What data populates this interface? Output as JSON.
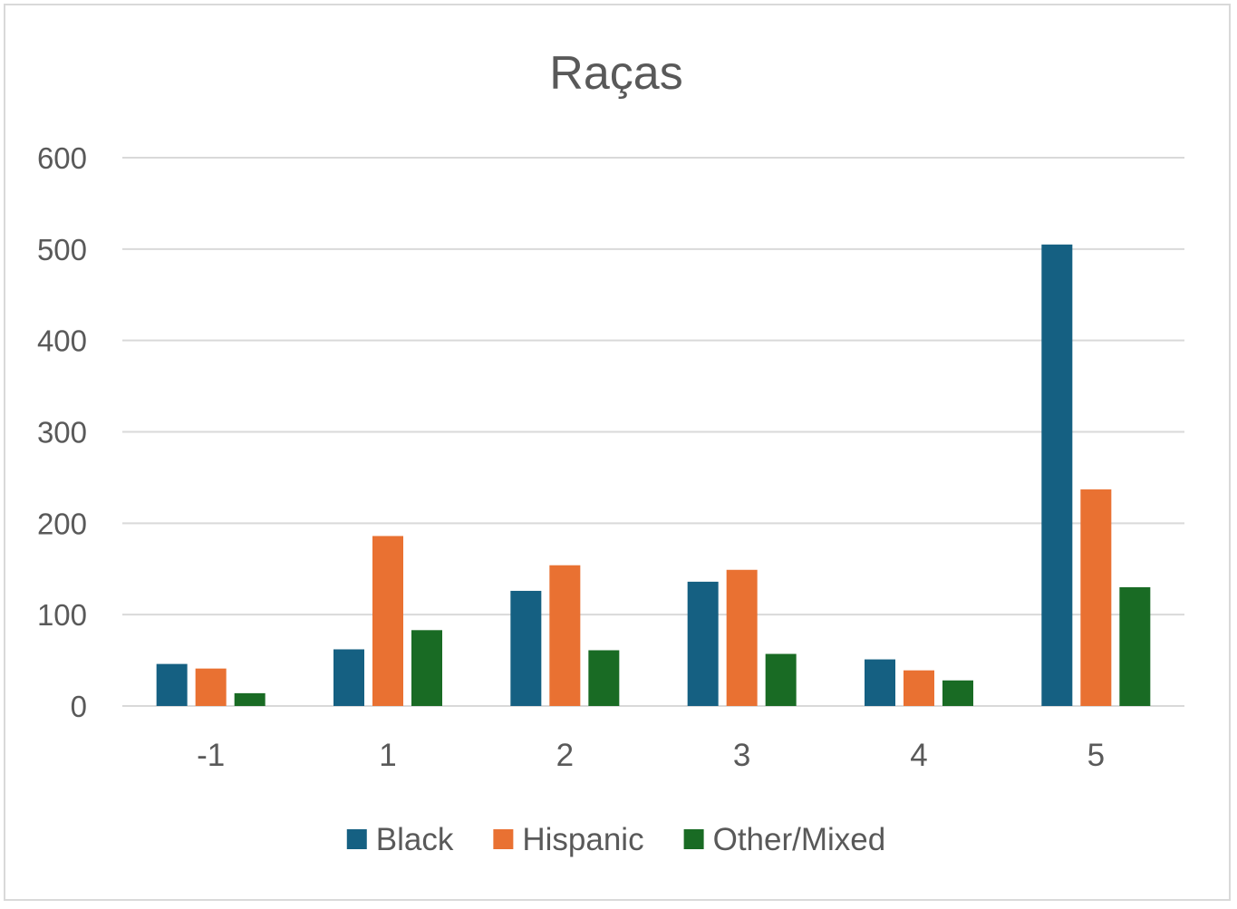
{
  "chart_data": {
    "type": "bar",
    "title": "Raças",
    "xlabel": "",
    "ylabel": "",
    "categories": [
      "-1",
      "1",
      "2",
      "3",
      "4",
      "5"
    ],
    "ylim": [
      0,
      600
    ],
    "yticks": [
      "0",
      "100",
      "200",
      "300",
      "400",
      "500",
      "600"
    ],
    "grid": true,
    "legend_position": "bottom",
    "series": [
      {
        "name": "Black",
        "color": "#156082",
        "values": [
          46,
          62,
          126,
          136,
          51,
          505
        ]
      },
      {
        "name": "Hispanic",
        "color": "#e97132",
        "values": [
          41,
          186,
          154,
          149,
          39,
          237
        ]
      },
      {
        "name": "Other/Mixed",
        "color": "#196b24",
        "values": [
          14,
          83,
          61,
          57,
          28,
          130
        ]
      }
    ]
  }
}
